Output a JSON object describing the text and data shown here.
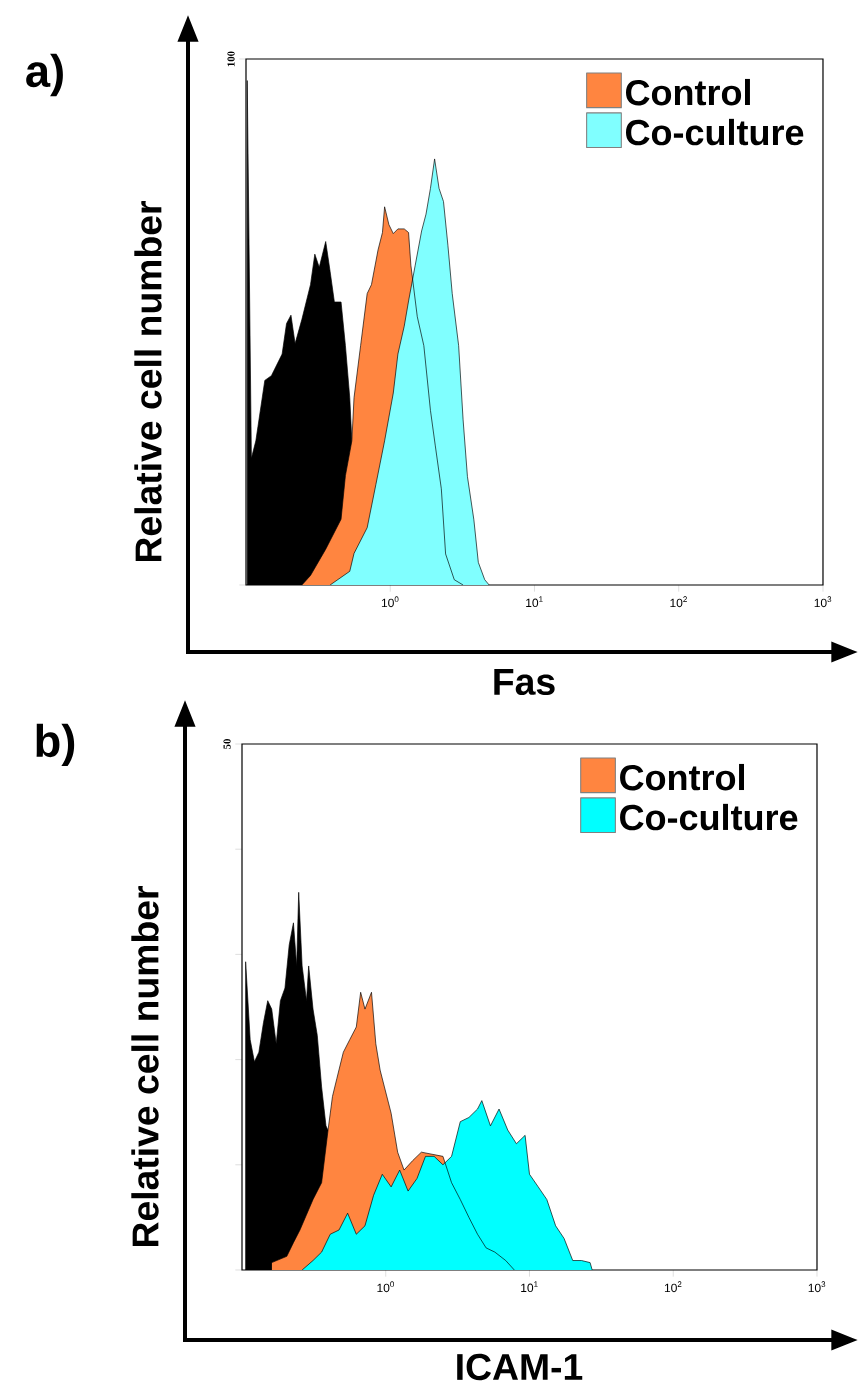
{
  "chart_data": [
    {
      "type": "area",
      "title": "a)",
      "xlabel": "Fas",
      "ylabel": "Relative cell number",
      "log": "x",
      "legend": "top right",
      "xlim": [
        0.1,
        1000
      ],
      "ylim": [
        0,
        100
      ],
      "xticks": [
        {
          "value": 1,
          "label": "10$^{0}$"
        },
        {
          "value": 10,
          "label": "10$^{1}$"
        },
        {
          "value": 100,
          "label": "10$^{2}$"
        },
        {
          "value": 1000,
          "label": "10$^{3}$"
        }
      ],
      "yticks": [
        {
          "value": 0,
          "label": null
        },
        100
      ],
      "series": [
        {
          "color": "#000000",
          "x": [
            0.102,
            0.109,
            0.117,
            0.135,
            0.15,
            0.178,
            0.191,
            0.205,
            0.219,
            0.244,
            0.28,
            0.3,
            0.322,
            0.357,
            0.383,
            0.41,
            0.456,
            0.489,
            0.524,
            0.542,
            0.914
          ],
          "values": [
            95.9,
            24.1,
            27.4,
            38.9,
            39.8,
            43.9,
            49.7,
            51.3,
            45.9,
            50.5,
            57.1,
            62.9,
            60.4,
            65.3,
            59.6,
            53.8,
            53.8,
            45.5,
            35.6,
            27.4,
            0
          ]
        },
        {
          "name": "Control",
          "color": "#ff8540",
          "x": [
            0.244,
            0.28,
            0.357,
            0.456,
            0.489,
            0.542,
            0.561,
            0.623,
            0.692,
            0.741,
            0.823,
            0.883,
            0.914,
            0.979,
            1.05,
            1.13,
            1.25,
            1.34,
            1.39,
            1.54,
            1.71,
            1.9,
            2.05,
            2.26,
            2.42,
            2.78,
            3.2
          ],
          "values": [
            0,
            1.8,
            6.8,
            12.5,
            20.8,
            27.4,
            35.6,
            45.5,
            55.4,
            57.1,
            63.7,
            67,
            71.9,
            68.5,
            66.8,
            67.7,
            67.7,
            67,
            60.8,
            51,
            45.5,
            33.2,
            26.6,
            18.3,
            5.9,
            1.0,
            0
          ]
        },
        {
          "name": "Co-culture",
          "color": "#80ffff",
          "x": [
            0.383,
            0.524,
            0.561,
            0.692,
            0.795,
            0.914,
            1.05,
            1.13,
            1.25,
            1.34,
            1.49,
            1.65,
            1.77,
            1.9,
            2.03,
            2.18,
            2.34,
            2.51,
            2.69,
            2.98,
            3.2,
            3.43,
            3.8,
            4.08,
            4.52,
            4.85
          ],
          "values": [
            0,
            2.6,
            6,
            10.9,
            19.1,
            27.4,
            36.5,
            43.9,
            49.2,
            54,
            60.8,
            67.3,
            70.5,
            75.4,
            81,
            75.4,
            72.9,
            64.6,
            55.4,
            45.5,
            31.4,
            20.6,
            12.4,
            4.3,
            1.0,
            0
          ]
        }
      ]
    },
    {
      "type": "area",
      "title": "b)",
      "xlabel": "ICAM-1",
      "ylabel": "Relative cell number",
      "log": "x",
      "legend": "top right",
      "xlim": [
        0.1,
        1000
      ],
      "ylim": [
        0,
        50
      ],
      "xticks": [
        {
          "value": 1,
          "label": "10$^{0}$"
        },
        {
          "value": 10,
          "label": "10$^{1}$"
        },
        {
          "value": 100,
          "label": "10$^{2}$"
        },
        {
          "value": 1000,
          "label": "10$^{3}$"
        }
      ],
      "yticks": [
        {
          "value": 0,
          "label": null
        },
        {
          "value": 10,
          "label": null
        },
        {
          "value": 20,
          "label": null
        },
        {
          "value": 30,
          "label": null
        },
        {
          "value": 40,
          "label": null
        },
        50
      ],
      "series": [
        {
          "color": "#000000",
          "x": [
            0.106,
            0.114,
            0.122,
            0.131,
            0.141,
            0.151,
            0.161,
            0.173,
            0.185,
            0.199,
            0.213,
            0.228,
            0.24,
            0.248,
            0.262,
            0.281,
            0.291,
            0.312,
            0.334,
            0.358,
            0.384,
            0.411,
            0.6
          ],
          "values": [
            29.3,
            21.9,
            19.8,
            20.7,
            23.5,
            25.6,
            24.8,
            21.5,
            25.6,
            26.8,
            30.9,
            33.0,
            28.9,
            35.9,
            28.9,
            25.6,
            28.9,
            24.8,
            22.3,
            17.4,
            13.7,
            12.8,
            0
          ]
        },
        {
          "name": "Control",
          "color": "#ff8540",
          "x": [
            0.161,
            0.205,
            0.228,
            0.253,
            0.312,
            0.358,
            0.397,
            0.426,
            0.457,
            0.507,
            0.562,
            0.624,
            0.669,
            0.717,
            0.796,
            0.853,
            0.914,
            0.979,
            1.09,
            1.21,
            1.34,
            1.54,
            1.77,
            2.5,
            2.87,
            3.3,
            3.79,
            4.35,
            4.99,
            5.74,
            6.83,
            7.84
          ],
          "values": [
            0.7,
            1.3,
            2.6,
            3.8,
            6.7,
            8.3,
            13.3,
            16.5,
            18.2,
            20.7,
            21.9,
            23.1,
            26.4,
            24.8,
            26.4,
            21.5,
            19.0,
            17.4,
            14.9,
            11.2,
            9.5,
            10.4,
            11.2,
            10.8,
            8.3,
            6.7,
            5.0,
            3.4,
            2.1,
            1.7,
            0.9,
            0
          ]
        },
        {
          "name": "Co-culture",
          "color": "#00ffff",
          "x": [
            0.262,
            0.312,
            0.358,
            0.411,
            0.473,
            0.543,
            0.624,
            0.717,
            0.823,
            0.946,
            1.09,
            1.25,
            1.43,
            1.65,
            1.89,
            2.17,
            2.5,
            2.87,
            3.3,
            3.79,
            4.35,
            4.66,
            5.35,
            6.14,
            7.06,
            8.11,
            9.32,
            10.0,
            11.5,
            13.2,
            15.2,
            17.4,
            20.0,
            23.0,
            26.4,
            27.3
          ],
          "values": [
            0,
            0.9,
            1.7,
            3.4,
            3.8,
            5.4,
            3.4,
            4.2,
            7.1,
            9.1,
            7.9,
            9.5,
            7.5,
            8.7,
            10.8,
            10.8,
            10.0,
            10.8,
            14.1,
            14.5,
            15.3,
            16.1,
            13.7,
            15.3,
            13.3,
            12.0,
            12.8,
            9.1,
            7.9,
            6.7,
            4.2,
            3.0,
            0.9,
            0.9,
            0.7,
            0
          ]
        }
      ]
    }
  ]
}
